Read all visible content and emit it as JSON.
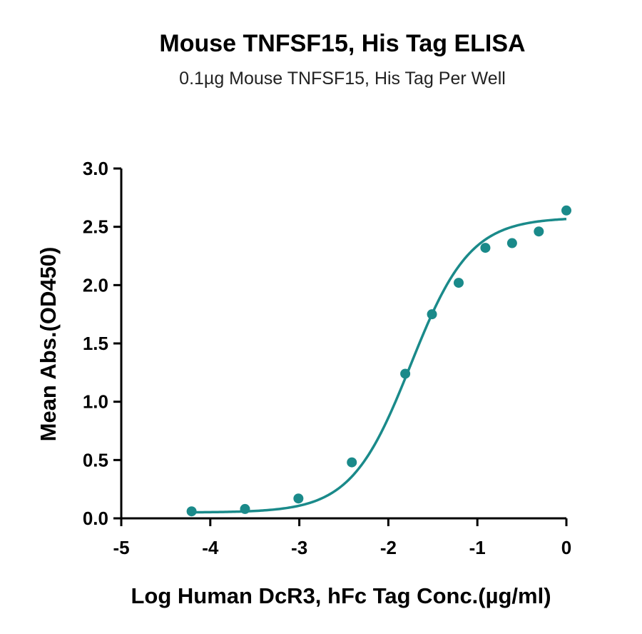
{
  "chart_data": {
    "type": "scatter",
    "title": "Mouse TNFSF15, His Tag ELISA",
    "subtitle": "0.1µg Mouse TNFSF15, His Tag Per Well",
    "xlabel": "Log Human DcR3, hFc Tag Conc.(µg/ml)",
    "ylabel": "Mean Abs.(OD450)",
    "xlim": [
      -5,
      0
    ],
    "ylim": [
      0,
      3
    ],
    "xticks": [
      -5,
      -4,
      -3,
      -2,
      -1,
      0
    ],
    "yticks": [
      0.0,
      0.5,
      1.0,
      1.5,
      2.0,
      2.5,
      3.0
    ],
    "xtick_labels": [
      "-5",
      "-4",
      "-3",
      "-2",
      "-1",
      "0"
    ],
    "ytick_labels": [
      "0.0",
      "0.5",
      "1.0",
      "1.5",
      "2.0",
      "2.5",
      "3.0"
    ],
    "grid": false,
    "color": "#1a8a8a",
    "series": [
      {
        "points": {
          "x": [
            -4.21,
            -3.61,
            -3.01,
            -2.41,
            -1.81,
            -1.51,
            -1.21,
            -0.91,
            -0.61,
            -0.31,
            0.0
          ],
          "y": [
            0.06,
            0.08,
            0.17,
            0.48,
            1.24,
            1.75,
            2.02,
            2.32,
            2.36,
            2.46,
            2.64
          ]
        },
        "fit": {
          "model": "4PL",
          "bottom": 0.05,
          "top": 2.58,
          "log_ec50": -1.75,
          "hill": 1.3,
          "x_range": [
            -4.21,
            0.0
          ]
        }
      }
    ]
  }
}
